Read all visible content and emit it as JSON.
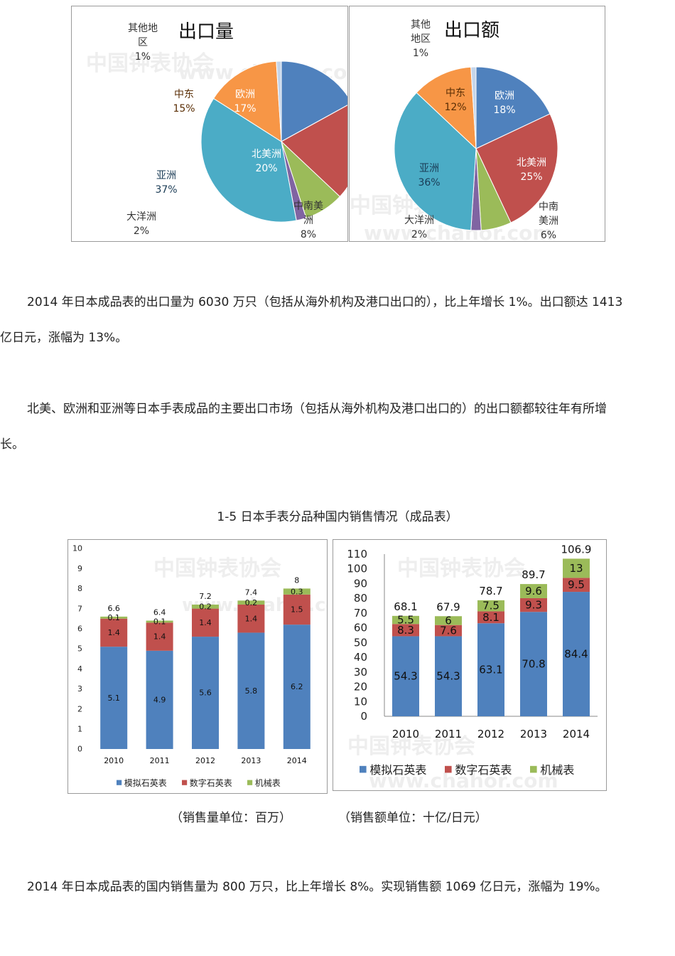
{
  "pie_charts": [
    {
      "title": "出口量",
      "slices": [
        {
          "name": "欧洲",
          "value": "17%",
          "color": "#4f81bd"
        },
        {
          "name": "北美洲",
          "value": "20%",
          "color": "#c0504d"
        },
        {
          "name": "中南美洲",
          "value": "8%",
          "color": "#9bbb59"
        },
        {
          "name": "大洋洲",
          "value": "2%",
          "color": "#8064a2"
        },
        {
          "name": "亚洲",
          "value": "37%",
          "color": "#4bacc6"
        },
        {
          "name": "中东",
          "value": "15%",
          "color": "#f79646"
        },
        {
          "name": "其他地区",
          "value": "1%",
          "color": "#c5d5ea"
        }
      ]
    },
    {
      "title": "出口额",
      "slices": [
        {
          "name": "欧洲",
          "value": "18%",
          "color": "#4f81bd"
        },
        {
          "name": "北美洲",
          "value": "25%",
          "color": "#c0504d"
        },
        {
          "name": "中南美洲",
          "value": "6%",
          "color": "#9bbb59"
        },
        {
          "name": "大洋洲",
          "value": "2%",
          "color": "#8064a2"
        },
        {
          "name": "亚洲",
          "value": "36%",
          "color": "#4bacc6"
        },
        {
          "name": "中东",
          "value": "12%",
          "color": "#f79646"
        },
        {
          "name": "其他地区",
          "value": "1%",
          "color": "#c5d5ea"
        }
      ]
    }
  ],
  "chart_data": [
    {
      "type": "pie",
      "title": "出口量",
      "categories": [
        "欧洲",
        "北美洲",
        "中南美洲",
        "大洋洲",
        "亚洲",
        "中东",
        "其他地区"
      ],
      "values": [
        17,
        20,
        8,
        2,
        37,
        15,
        1
      ],
      "unit": "%"
    },
    {
      "type": "pie",
      "title": "出口额",
      "categories": [
        "欧洲",
        "北美洲",
        "中南美洲",
        "大洋洲",
        "亚洲",
        "中东",
        "其他地区"
      ],
      "values": [
        18,
        25,
        6,
        2,
        36,
        12,
        1
      ],
      "unit": "%"
    },
    {
      "type": "bar",
      "stacked": true,
      "categories": [
        "2010",
        "2011",
        "2012",
        "2013",
        "2014"
      ],
      "series": [
        {
          "name": "模拟石英表",
          "values": [
            5.1,
            4.9,
            5.6,
            5.8,
            6.2
          ],
          "color": "#4f81bd"
        },
        {
          "name": "数字石英表",
          "values": [
            1.4,
            1.4,
            1.4,
            1.4,
            1.5
          ],
          "color": "#c0504d"
        },
        {
          "name": "机械表",
          "values": [
            0.1,
            0.1,
            0.2,
            0.2,
            0.3
          ],
          "color": "#9bbb59"
        }
      ],
      "totals": [
        "6.6",
        "6.4",
        "7.2",
        "7.4",
        "8"
      ],
      "yticks": [
        "0",
        "1",
        "2",
        "3",
        "4",
        "5",
        "6",
        "7",
        "8",
        "9",
        "10"
      ],
      "ylim": [
        0,
        10
      ],
      "legend": "bottom"
    },
    {
      "type": "bar",
      "stacked": true,
      "categories": [
        "2010",
        "2011",
        "2012",
        "2013",
        "2014"
      ],
      "series": [
        {
          "name": "模拟石英表",
          "values": [
            54.3,
            54.3,
            63.1,
            70.8,
            84.4
          ],
          "color": "#4f81bd"
        },
        {
          "name": "数字石英表",
          "values": [
            8.3,
            7.6,
            8.1,
            9.3,
            9.5
          ],
          "color": "#c0504d"
        },
        {
          "name": "机械表",
          "values": [
            5.5,
            6,
            7.5,
            9.6,
            13
          ],
          "color": "#9bbb59"
        }
      ],
      "totals": [
        "68.1",
        "67.9",
        "78.7",
        "89.7",
        "106.9"
      ],
      "yticks": [
        "0",
        "10",
        "20",
        "30",
        "40",
        "50",
        "60",
        "70",
        "80",
        "90",
        "100",
        "110"
      ],
      "ylim": [
        0,
        110
      ],
      "legend": "bottom"
    }
  ],
  "text": {
    "para1_line1": "2014 年日本成品表的出口量为 6030 万只（包括从海外机构及港口出口的），比上年增长 1%。出口额达 1413",
    "para1_line2": "亿日元，涨幅为 13%。",
    "para2_line1": "北美、欧洲和亚洲等日本手表成品的主要出口市场（包括从海外机构及港口出口的）的出口额都较往年有所增",
    "para2_line2": "长。",
    "section_title": "1-5  日本手表分品种国内销售情况（成品表）",
    "caption_left": "（销售量单位：百万）",
    "caption_right": "（销售额单位：十亿/日元）",
    "para3": "2014 年日本成品表的国内销售量为 800 万只，比上年增长 8%。实现销售额 1069 亿日元，涨幅为 19%。"
  },
  "watermark": {
    "cn": "中国钟表协会",
    "url": "www.chahor.com",
    "color": "#e4e4e4"
  }
}
